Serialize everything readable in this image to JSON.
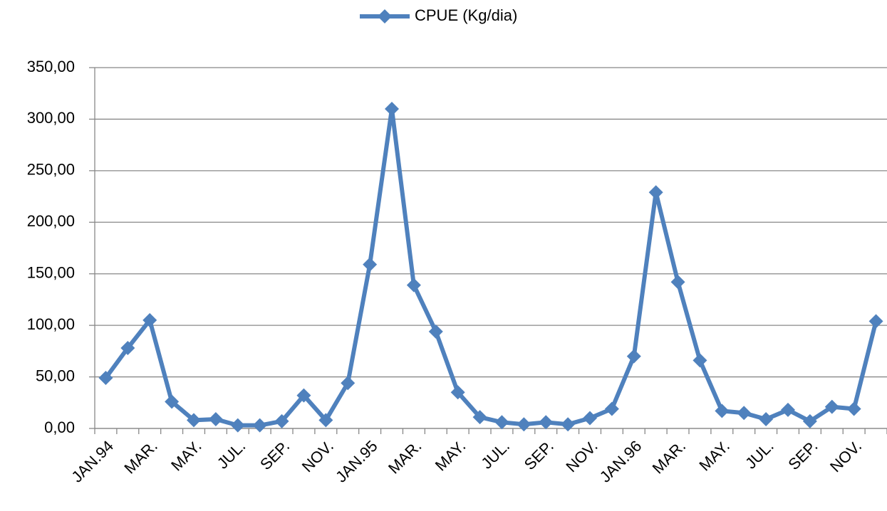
{
  "chart_data": {
    "type": "line",
    "categories": [
      "JAN.94",
      null,
      "MAR.",
      null,
      "MAY.",
      null,
      "JUL.",
      null,
      "SEP.",
      null,
      "NOV.",
      null,
      "JAN.95",
      null,
      "MAR.",
      null,
      "MAY.",
      null,
      "JUL.",
      null,
      "SEP.",
      null,
      "NOV.",
      null,
      "JAN.96",
      null,
      "MAR.",
      null,
      "MAY.",
      null,
      "JUL.",
      null,
      "SEP.",
      null,
      "NOV.",
      null
    ],
    "series": [
      {
        "name": "CPUE (Kg/dia)",
        "color": "#4f81bd",
        "values": [
          49,
          78,
          105,
          26,
          8,
          9,
          3,
          3,
          7,
          32,
          8,
          44,
          159,
          310,
          139,
          94,
          35,
          11,
          6,
          4,
          6,
          4,
          10,
          19,
          70,
          229,
          142,
          66,
          17,
          15,
          9,
          18,
          7,
          21,
          19,
          104
        ]
      }
    ],
    "ylim": [
      0,
      350
    ],
    "yticks": [
      {
        "value": 0,
        "label": "0,00"
      },
      {
        "value": 50,
        "label": "50,00"
      },
      {
        "value": 100,
        "label": "100,00"
      },
      {
        "value": 150,
        "label": "150,00"
      },
      {
        "value": 200,
        "label": "200,00"
      },
      {
        "value": 250,
        "label": "250,00"
      },
      {
        "value": 300,
        "label": "300,00"
      },
      {
        "value": 350,
        "label": "350,00"
      }
    ],
    "grid": true,
    "legend": "top"
  }
}
